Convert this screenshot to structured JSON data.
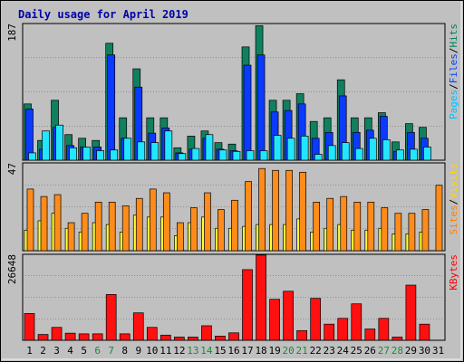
{
  "chart_data": {
    "type": "bar",
    "title": "Daily usage for April 2019",
    "days": [
      "1",
      "2",
      "3",
      "4",
      "5",
      "6",
      "7",
      "8",
      "9",
      "10",
      "11",
      "12",
      "13",
      "14",
      "15",
      "16",
      "17",
      "18",
      "19",
      "20",
      "21",
      "22",
      "23",
      "24",
      "25",
      "26",
      "27",
      "28",
      "29",
      "30",
      "31"
    ],
    "weekend_days": [
      "6",
      "7",
      "13",
      "14",
      "20",
      "21",
      "27",
      "28"
    ],
    "panels": [
      {
        "id": "top",
        "max_label": "187",
        "ylim": [
          0,
          187
        ],
        "legend": [
          {
            "label": "Pages",
            "color": "#00c0ff"
          },
          {
            "label": "/",
            "color": "#000000"
          },
          {
            "label": "Files",
            "color": "#0040ff"
          },
          {
            "label": "/",
            "color": "#000000"
          },
          {
            "label": "Hits",
            "color": "#008060"
          }
        ],
        "series": [
          {
            "name": "Hits",
            "color": "#10805f",
            "values": [
              77,
              27,
              82,
              35,
              30,
              27,
              160,
              58,
              125,
              58,
              58,
              17,
              33,
              40,
              24,
              22,
              155,
              184,
              82,
              82,
              91,
              53,
              58,
              110,
              58,
              58,
              65,
              25,
              50,
              45,
              0
            ]
          },
          {
            "name": "Files",
            "color": "#0b3aff",
            "values": [
              70,
              15,
              45,
              20,
              18,
              18,
              144,
              30,
              100,
              37,
              44,
              10,
              15,
              30,
              15,
              13,
              130,
              144,
              66,
              68,
              77,
              30,
              38,
              88,
              38,
              41,
              60,
              12,
              38,
              30,
              0
            ]
          },
          {
            "name": "Pages",
            "color": "#22e6ff",
            "values": [
              10,
              40,
              48,
              17,
              18,
              13,
              14,
              30,
              25,
              24,
              40,
              9,
              16,
              35,
              14,
              12,
              13,
              13,
              34,
              30,
              33,
              8,
              20,
              24,
              16,
              30,
              28,
              14,
              15,
              18,
              0
            ]
          }
        ]
      },
      {
        "id": "middle",
        "max_label": "47",
        "ylim": [
          0,
          47
        ],
        "legend": [
          {
            "label": "Sites",
            "color": "#ff8000"
          },
          {
            "label": "/",
            "color": "#000000"
          },
          {
            "label": "Visits",
            "color": "#ffd700"
          }
        ],
        "series": [
          {
            "name": "Visits",
            "color": "#ffff33",
            "values": [
              11,
              16,
              20,
              12,
              10,
              15,
              14,
              10,
              19,
              18,
              18,
              8,
              15,
              18,
              12,
              12,
              13,
              14,
              14,
              14,
              17,
              10,
              12,
              14,
              11,
              11,
              12,
              9,
              9,
              10,
              0
            ]
          },
          {
            "name": "Sites",
            "color": "#ff8c1a",
            "values": [
              33,
              29,
              30,
              15,
              20,
              26,
              26,
              24,
              28,
              33,
              31,
              15,
              23,
              31,
              22,
              27,
              37,
              44,
              43,
              43,
              42,
              26,
              28,
              29,
              26,
              26,
              23,
              20,
              20,
              22,
              35
            ]
          }
        ]
      },
      {
        "id": "bottom",
        "max_label": "26648",
        "ylim": [
          0,
          26648
        ],
        "legend": [
          {
            "label": "KBytes",
            "color": "#ff0000"
          }
        ],
        "series": [
          {
            "name": "KBytes",
            "color": "#ff1010",
            "values": [
              8300,
              1800,
              4000,
              2200,
              2000,
              2000,
              14200,
              2000,
              8500,
              4000,
              1600,
              1000,
              1000,
              4500,
              1300,
              2300,
              21900,
              26400,
              12700,
              15200,
              3000,
              13000,
              5000,
              6800,
              11300,
              3500,
              6800,
              1000,
              17100,
              5000,
              0
            ]
          }
        ]
      }
    ]
  }
}
